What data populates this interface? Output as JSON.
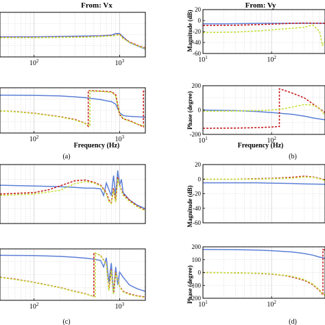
{
  "figure": {
    "column_titles": {
      "left": "From: Vx",
      "right": "From: Vy"
    },
    "panel_labels": [
      "(a)",
      "(b)",
      "(c)",
      "(d)"
    ],
    "xlabel": "Frequency (Hz)",
    "ylabel_magnitude": "Magnitude (dB)",
    "ylabel_phase": "Phase (degree)"
  },
  "colors": {
    "blue": "#5b7fd6",
    "red": "#c81e1e",
    "green": "#c4e03c",
    "grid": "#d4d4d4"
  },
  "chart_data": [
    {
      "id": "a-mag",
      "type": "line",
      "x_scale": "log",
      "xlim": [
        40,
        2000
      ],
      "ylim": [
        -60,
        20
      ],
      "xticks": [
        100,
        1000
      ],
      "xtick_labels": [
        "10^2",
        "10^3"
      ],
      "yticks": [],
      "ytick_labels": [],
      "show_xticklabels": true,
      "series": [
        {
          "color": "blue",
          "style": "solid",
          "x": [
            40,
            100,
            200,
            400,
            600,
            800,
            900,
            1000,
            1100,
            1300,
            1600,
            2000
          ],
          "y": [
            -24,
            -24,
            -23.5,
            -22.5,
            -22,
            -21,
            -18,
            -18,
            -24,
            -34,
            -40,
            -46
          ]
        },
        {
          "color": "red",
          "style": "dashed",
          "x": [
            40,
            100,
            200,
            400,
            600,
            800,
            900,
            1000,
            1100,
            1300,
            1600,
            2000
          ],
          "y": [
            -25,
            -25,
            -24.5,
            -24,
            -23,
            -22,
            -21,
            -19,
            -26,
            -33,
            -39,
            -44
          ]
        },
        {
          "color": "green",
          "style": "dashed",
          "x": [
            40,
            100,
            200,
            400,
            600,
            800,
            900,
            1000,
            1100,
            1300,
            1600,
            2000
          ],
          "y": [
            -25.5,
            -25.5,
            -25,
            -24.5,
            -23.5,
            -22.5,
            -21.5,
            -20,
            -27,
            -34,
            -40,
            -45
          ]
        }
      ]
    },
    {
      "id": "a-phase",
      "type": "line",
      "x_scale": "log",
      "xlim": [
        40,
        2000
      ],
      "ylim": [
        -200,
        200
      ],
      "xticks": [
        100,
        1000
      ],
      "xtick_labels": [
        "10^2",
        "10^3"
      ],
      "yticks": [],
      "ytick_labels": [],
      "show_xticklabels": true,
      "series": [
        {
          "color": "blue",
          "style": "solid",
          "x": [
            40,
            100,
            200,
            300,
            400,
            500,
            600,
            700,
            800,
            900,
            1000,
            1100,
            1200,
            1500,
            2000
          ],
          "y": [
            135,
            133,
            128,
            120,
            112,
            103,
            95,
            85,
            78,
            55,
            -20,
            -45,
            -50,
            -55,
            -60
          ]
        },
        {
          "color": "red",
          "style": "dashed",
          "x": [
            40,
            60,
            100,
            200,
            300,
            400,
            430,
            430,
            600,
            800,
            900,
            1000,
            1100,
            1300,
            1500,
            1700,
            1900,
            1900,
            2000
          ],
          "y": [
            -5,
            -10,
            -25,
            -55,
            -80,
            -115,
            -140,
            175,
            170,
            165,
            140,
            -35,
            -75,
            -90,
            -110,
            -130,
            -145,
            175,
            170
          ]
        },
        {
          "color": "green",
          "style": "dashed",
          "x": [
            40,
            60,
            100,
            200,
            300,
            400,
            450,
            450,
            600,
            800,
            900,
            1000,
            1100,
            1300,
            1600,
            2000
          ],
          "y": [
            -5,
            -12,
            -27,
            -58,
            -85,
            -118,
            -140,
            170,
            168,
            160,
            130,
            -30,
            -70,
            -95,
            -120,
            -140
          ]
        }
      ]
    },
    {
      "id": "b-mag",
      "type": "line",
      "x_scale": "log",
      "xlim": [
        10,
        600
      ],
      "ylim": [
        -60,
        20
      ],
      "xticks": [
        10,
        100
      ],
      "xtick_labels": [
        "10^1",
        "10^2"
      ],
      "yticks": [
        -60,
        -40,
        -20,
        0,
        20
      ],
      "ytick_labels": [
        "-60",
        "-40",
        "-20",
        "0",
        "20"
      ],
      "show_xticklabels": true,
      "series": [
        {
          "color": "blue",
          "style": "solid",
          "x": [
            10,
            20,
            40,
            80,
            150,
            300,
            600
          ],
          "y": [
            -6,
            -6,
            -5.5,
            -5,
            -5,
            -5,
            -5
          ]
        },
        {
          "color": "red",
          "style": "dashed",
          "x": [
            10,
            30,
            60,
            100,
            200,
            300,
            600
          ],
          "y": [
            -9,
            -8.5,
            -7.5,
            -6.5,
            -5,
            -4.5,
            -5
          ]
        },
        {
          "color": "green",
          "style": "dashed",
          "x": [
            10,
            30,
            60,
            100,
            200,
            300,
            400,
            500,
            550,
            600
          ],
          "y": [
            -22,
            -21,
            -19,
            -17,
            -14,
            -12,
            -8,
            -20,
            -45,
            -38
          ]
        }
      ]
    },
    {
      "id": "b-phase",
      "type": "line",
      "x_scale": "log",
      "xlim": [
        10,
        600
      ],
      "ylim": [
        -200,
        200
      ],
      "xticks": [
        10,
        100
      ],
      "xtick_labels": [
        "10^1",
        "10^2"
      ],
      "yticks": [
        -200,
        0,
        200
      ],
      "ytick_labels": [
        "-200",
        "0",
        "200"
      ],
      "show_xticklabels": true,
      "series": [
        {
          "color": "blue",
          "style": "solid",
          "x": [
            10,
            30,
            60,
            100,
            200,
            300,
            400,
            600
          ],
          "y": [
            0,
            -5,
            -12,
            -20,
            -35,
            -50,
            -65,
            -80
          ]
        },
        {
          "color": "red",
          "style": "dashed",
          "x": [
            10,
            30,
            60,
            100,
            130,
            130,
            200,
            300,
            400,
            600
          ],
          "y": [
            -150,
            -148,
            -145,
            -140,
            -135,
            175,
            140,
            100,
            50,
            -20
          ]
        },
        {
          "color": "green",
          "style": "dashed",
          "x": [
            10,
            30,
            60,
            100,
            150,
            200,
            300,
            400,
            500,
            600
          ],
          "y": [
            -10,
            -8,
            -5,
            0,
            10,
            25,
            45,
            40,
            15,
            -45
          ]
        }
      ]
    },
    {
      "id": "c-mag",
      "type": "line",
      "x_scale": "log",
      "xlim": [
        40,
        2000
      ],
      "ylim": [
        -60,
        20
      ],
      "xticks": [
        100,
        1000
      ],
      "xtick_labels": [
        "10^2",
        "10^3"
      ],
      "yticks": [],
      "ytick_labels": [],
      "show_xticklabels": false,
      "series": [
        {
          "color": "blue",
          "style": "solid",
          "x": [
            40,
            100,
            200,
            300,
            400,
            500,
            600,
            650,
            700,
            750,
            800,
            850,
            900,
            950,
            1000,
            1050,
            1100,
            1300,
            1600,
            2000
          ],
          "y": [
            -8,
            -9,
            -10,
            -11,
            -12,
            -12,
            -13,
            -22,
            -5,
            -14,
            -22,
            5,
            -22,
            12,
            -8,
            0,
            -18,
            -28,
            -35,
            -40
          ]
        },
        {
          "color": "red",
          "style": "dashed",
          "x": [
            40,
            100,
            150,
            200,
            300,
            400,
            500,
            600,
            700,
            750,
            800,
            850,
            900,
            950,
            1000,
            1100,
            1300,
            1600,
            2000
          ],
          "y": [
            -20,
            -18,
            -14,
            -9,
            -2,
            -1,
            -4,
            -8,
            -18,
            -28,
            -32,
            -12,
            -30,
            3,
            -8,
            -20,
            -28,
            -36,
            -42
          ]
        },
        {
          "color": "green",
          "style": "dashed",
          "x": [
            40,
            100,
            200,
            300,
            400,
            500,
            600,
            700,
            750,
            800,
            850,
            900,
            950,
            1000,
            1100,
            1300,
            1600,
            2000
          ],
          "y": [
            -22,
            -20,
            -15,
            -6,
            -3,
            -5,
            -9,
            -20,
            -30,
            -33,
            -14,
            -31,
            1,
            -9,
            -22,
            -30,
            -37,
            -43
          ]
        }
      ]
    },
    {
      "id": "c-phase",
      "type": "line",
      "x_scale": "log",
      "xlim": [
        40,
        2000
      ],
      "ylim": [
        -200,
        200
      ],
      "xticks": [
        100,
        1000
      ],
      "xtick_labels": [
        "10^2",
        "10^3"
      ],
      "yticks": [],
      "ytick_labels": [],
      "show_xticklabels": true,
      "series": [
        {
          "color": "blue",
          "style": "solid",
          "x": [
            40,
            100,
            200,
            300,
            400,
            500,
            600,
            650,
            700,
            750,
            800,
            850,
            900,
            950,
            1000,
            1100,
            1300,
            1600,
            2000
          ],
          "y": [
            150,
            148,
            142,
            135,
            128,
            120,
            110,
            60,
            130,
            -60,
            90,
            -150,
            60,
            -80,
            20,
            -20,
            -80,
            -110,
            -130
          ]
        },
        {
          "color": "red",
          "style": "dashed",
          "x": [
            40,
            60,
            100,
            200,
            300,
            400,
            500,
            500,
            600,
            700,
            750,
            800,
            850,
            900,
            1000,
            1100,
            1300,
            1600,
            2000
          ],
          "y": [
            -20,
            -35,
            -60,
            -100,
            -130,
            -150,
            -170,
            170,
            150,
            80,
            -120,
            40,
            -150,
            20,
            -90,
            -130,
            -150,
            -165,
            -175
          ]
        },
        {
          "color": "green",
          "style": "dashed",
          "x": [
            40,
            60,
            100,
            200,
            300,
            400,
            520,
            520,
            600,
            700,
            750,
            800,
            850,
            900,
            1000,
            1100,
            1300,
            1600,
            2000
          ],
          "y": [
            -22,
            -38,
            -62,
            -102,
            -132,
            -152,
            -172,
            168,
            148,
            75,
            -125,
            35,
            -155,
            15,
            -95,
            -135,
            -155,
            -168,
            -178
          ]
        }
      ]
    },
    {
      "id": "d-mag",
      "type": "line",
      "x_scale": "log",
      "xlim": [
        10,
        600
      ],
      "ylim": [
        -60,
        20
      ],
      "xticks": [
        10,
        100
      ],
      "xtick_labels": [
        "10^1",
        "10^2"
      ],
      "yticks": [
        -60,
        -40,
        -20,
        0,
        20
      ],
      "ytick_labels": [
        "-60",
        "-40",
        "-20",
        "0",
        "20"
      ],
      "show_xticklabels": false,
      "series": [
        {
          "color": "blue",
          "style": "solid",
          "x": [
            10,
            30,
            60,
            100,
            200,
            300,
            600
          ],
          "y": [
            -5,
            -5,
            -5,
            -5.5,
            -6,
            -6.5,
            -7
          ]
        },
        {
          "color": "red",
          "style": "dashed",
          "x": [
            10,
            30,
            60,
            100,
            200,
            300,
            400,
            500,
            600
          ],
          "y": [
            0,
            0,
            0.5,
            1,
            2.5,
            4,
            3,
            1,
            -1
          ]
        },
        {
          "color": "green",
          "style": "dashed",
          "x": [
            10,
            30,
            60,
            100,
            200,
            300,
            400,
            500,
            600
          ],
          "y": [
            0,
            0,
            0,
            0.5,
            1.5,
            3,
            2.5,
            0.5,
            -2
          ]
        }
      ]
    },
    {
      "id": "d-phase",
      "type": "line",
      "x_scale": "log",
      "xlim": [
        10,
        600
      ],
      "ylim": [
        -200,
        200
      ],
      "xticks": [
        10,
        100
      ],
      "xtick_labels": [
        "10^1",
        "10^2"
      ],
      "yticks": [
        -200,
        -100,
        0,
        100,
        200
      ],
      "ytick_labels": [
        "-200",
        "-100",
        "0",
        "100",
        "200"
      ],
      "show_xticklabels": true,
      "series": [
        {
          "color": "blue",
          "style": "solid",
          "x": [
            10,
            30,
            60,
            100,
            200,
            300,
            400,
            500,
            550,
            600
          ],
          "y": [
            180,
            178,
            175,
            170,
            160,
            148,
            135,
            120,
            115,
            110
          ]
        },
        {
          "color": "red",
          "style": "dashed",
          "x": [
            10,
            30,
            60,
            100,
            150,
            200,
            300,
            400,
            500,
            560,
            560,
            600
          ],
          "y": [
            0,
            -2,
            -6,
            -12,
            -22,
            -35,
            -60,
            -95,
            -140,
            -175,
            180,
            175
          ]
        },
        {
          "color": "green",
          "style": "dashed",
          "x": [
            10,
            30,
            60,
            100,
            150,
            200,
            300,
            400,
            500,
            560,
            600
          ],
          "y": [
            0,
            -2,
            -5,
            -10,
            -20,
            -30,
            -55,
            -90,
            -135,
            -170,
            -175
          ]
        }
      ]
    }
  ]
}
